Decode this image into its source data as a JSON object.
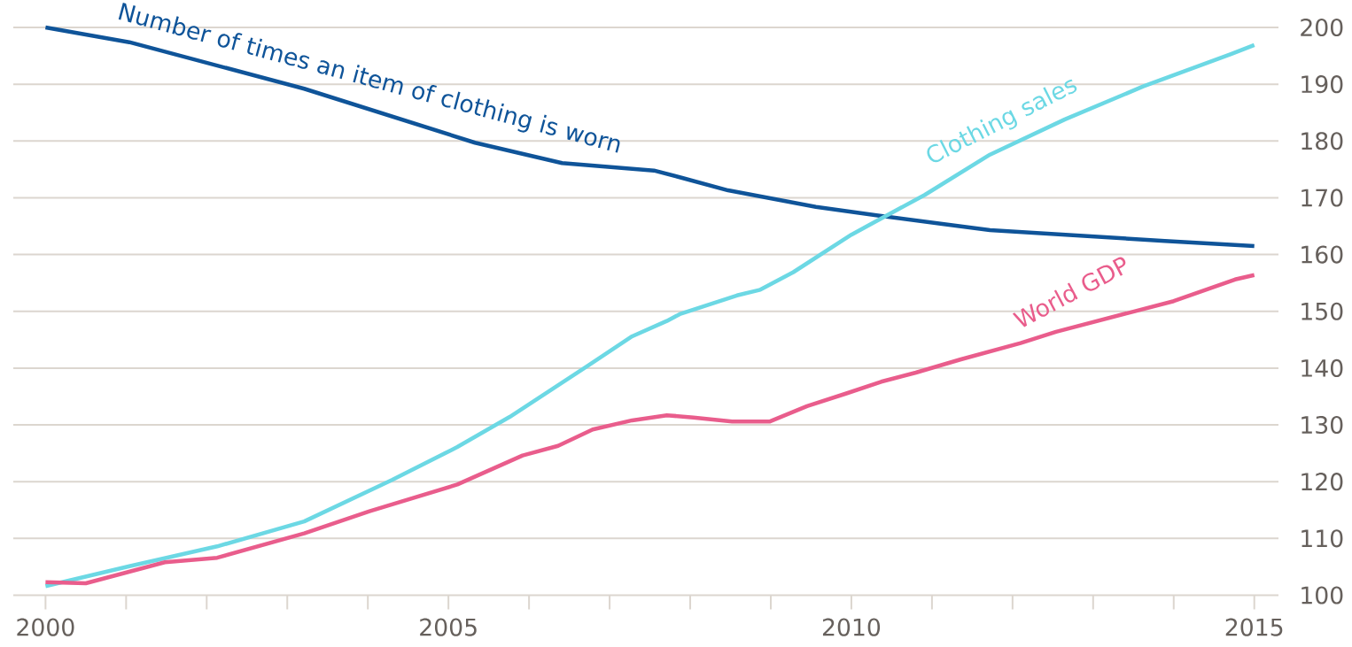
{
  "chart_data": {
    "type": "line",
    "grid": "y",
    "xlim": [
      1999.6,
      2015.3
    ],
    "ylim": [
      100,
      200
    ],
    "xticks": [
      2000,
      {
        "value": 2001,
        "label": null
      },
      {
        "value": 2002,
        "label": null
      },
      {
        "value": 2003,
        "label": null
      },
      {
        "value": 2004,
        "label": null
      },
      2005,
      {
        "value": 2006,
        "label": null
      },
      {
        "value": 2007,
        "label": null
      },
      {
        "value": 2008,
        "label": null
      },
      {
        "value": 2009,
        "label": null
      },
      2010,
      {
        "value": 2011,
        "label": null
      },
      {
        "value": 2012,
        "label": null
      },
      {
        "value": 2013,
        "label": null
      },
      {
        "value": 2014,
        "label": null
      },
      2015
    ],
    "yticks": [
      100,
      110,
      120,
      130,
      140,
      150,
      160,
      170,
      180,
      190,
      200
    ],
    "series": [
      {
        "name": "Number of times an item of clothing is worn",
        "color": "#0f5499",
        "x": [
          2000,
          2001.04,
          2003.21,
          2005.33,
          2006.41,
          2007.55,
          2007.9,
          2008.47,
          2009.56,
          2010.31,
          2011.72,
          2013.89,
          2015
        ],
        "values": [
          200,
          197.4,
          189.2,
          179.7,
          176.1,
          174.8,
          173.5,
          171.3,
          168.4,
          166.9,
          164.3,
          162.4,
          161.5
        ]
      },
      {
        "name": "Clothing sales",
        "color": "#6cd8e4",
        "x": [
          2000,
          2001.04,
          2002.13,
          2003.21,
          2004.3,
          2005.11,
          2005.76,
          2006.74,
          2007.28,
          2007.71,
          2007.87,
          2008.58,
          2008.87,
          2009.28,
          2010,
          2010.91,
          2011.72,
          2012.65,
          2013.62,
          2014.71,
          2015
        ],
        "values": [
          101.6,
          105.1,
          108.6,
          113,
          120.3,
          126.1,
          131.4,
          140.5,
          145.6,
          148.3,
          149.5,
          152.8,
          153.8,
          156.9,
          163.5,
          170.5,
          177.6,
          183.8,
          189.6,
          195.3,
          196.9
        ]
      },
      {
        "name": "World GDP",
        "color": "#e95d8c",
        "x": [
          2000,
          2000.5,
          2001.48,
          2002.13,
          2003.21,
          2004.02,
          2005.11,
          2005.92,
          2006.36,
          2006.79,
          2007.28,
          2007.71,
          2008.04,
          2008.52,
          2008.99,
          2009.45,
          2009.93,
          2010.37,
          2010.8,
          2011.35,
          2012.1,
          2012.54,
          2014,
          2014.76,
          2015
        ],
        "values": [
          102.3,
          102.1,
          105.8,
          106.6,
          110.9,
          114.8,
          119.5,
          124.6,
          126.3,
          129.2,
          130.8,
          131.7,
          131.3,
          130.6,
          130.6,
          133.3,
          135.5,
          137.6,
          139.2,
          141.5,
          144.4,
          146.4,
          151.8,
          155.6,
          156.4
        ]
      }
    ]
  }
}
